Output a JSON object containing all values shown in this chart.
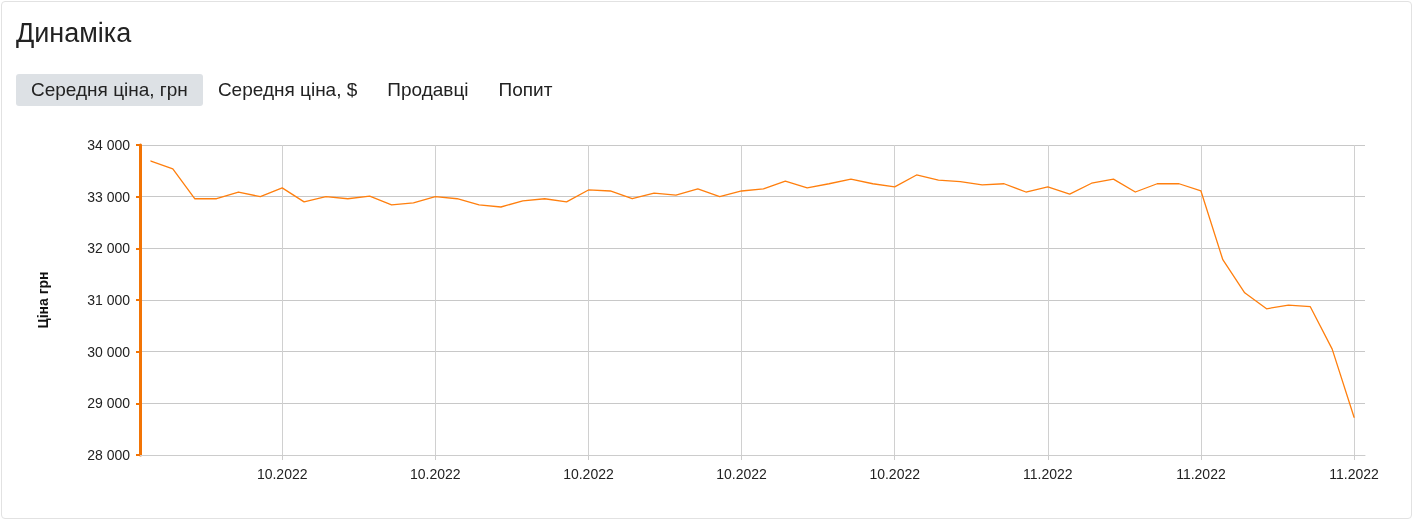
{
  "chart_data": {
    "type": "line",
    "title": "Динаміка",
    "annotations": [
      "Середня ціна, грн",
      "Середня ціна, $",
      "Продавці",
      "Попит"
    ],
    "ylabel": "Ціна грн",
    "categories": [
      null,
      null,
      null,
      null,
      null,
      null,
      "10.2022",
      null,
      null,
      null,
      null,
      null,
      null,
      "10.2022",
      null,
      null,
      null,
      null,
      null,
      null,
      "10.2022",
      null,
      null,
      null,
      null,
      null,
      null,
      "10.2022",
      null,
      null,
      null,
      null,
      null,
      null,
      "10.2022",
      null,
      null,
      null,
      null,
      null,
      null,
      "11.2022",
      null,
      null,
      null,
      null,
      null,
      null,
      "11.2022",
      null,
      null,
      null,
      null,
      null,
      null,
      "11.2022"
    ],
    "series": [
      {
        "color": "#ff7f0e",
        "values": [
          33690,
          33540,
          32960,
          32960,
          33090,
          33000,
          33170,
          32900,
          33000,
          32960,
          33010,
          32840,
          32880,
          33000,
          32960,
          32840,
          32800,
          32920,
          32960,
          32900,
          33130,
          33110,
          32960,
          33070,
          33030,
          33150,
          33000,
          33110,
          33150,
          33300,
          33170,
          33250,
          33340,
          33250,
          33190,
          33420,
          33320,
          33290,
          33230,
          33250,
          33090,
          33190,
          33050,
          33260,
          33340,
          33090,
          33250,
          33250,
          33110,
          31780,
          31140,
          30830,
          30900,
          30870,
          30050,
          28730
        ]
      }
    ],
    "ylim": [
      28000,
      34000
    ],
    "yticks": [
      {
        "value": 28000,
        "label": "28 000"
      },
      {
        "value": 29000,
        "label": "29 000"
      },
      {
        "value": 30000,
        "label": "30 000"
      },
      {
        "value": 31000,
        "label": "31 000"
      },
      {
        "value": 32000,
        "label": "32 000"
      },
      {
        "value": 33000,
        "label": "33 000"
      },
      {
        "value": 34000,
        "label": "34 000"
      }
    ],
    "grid": true,
    "marker": "none",
    "line_style": "solid"
  }
}
